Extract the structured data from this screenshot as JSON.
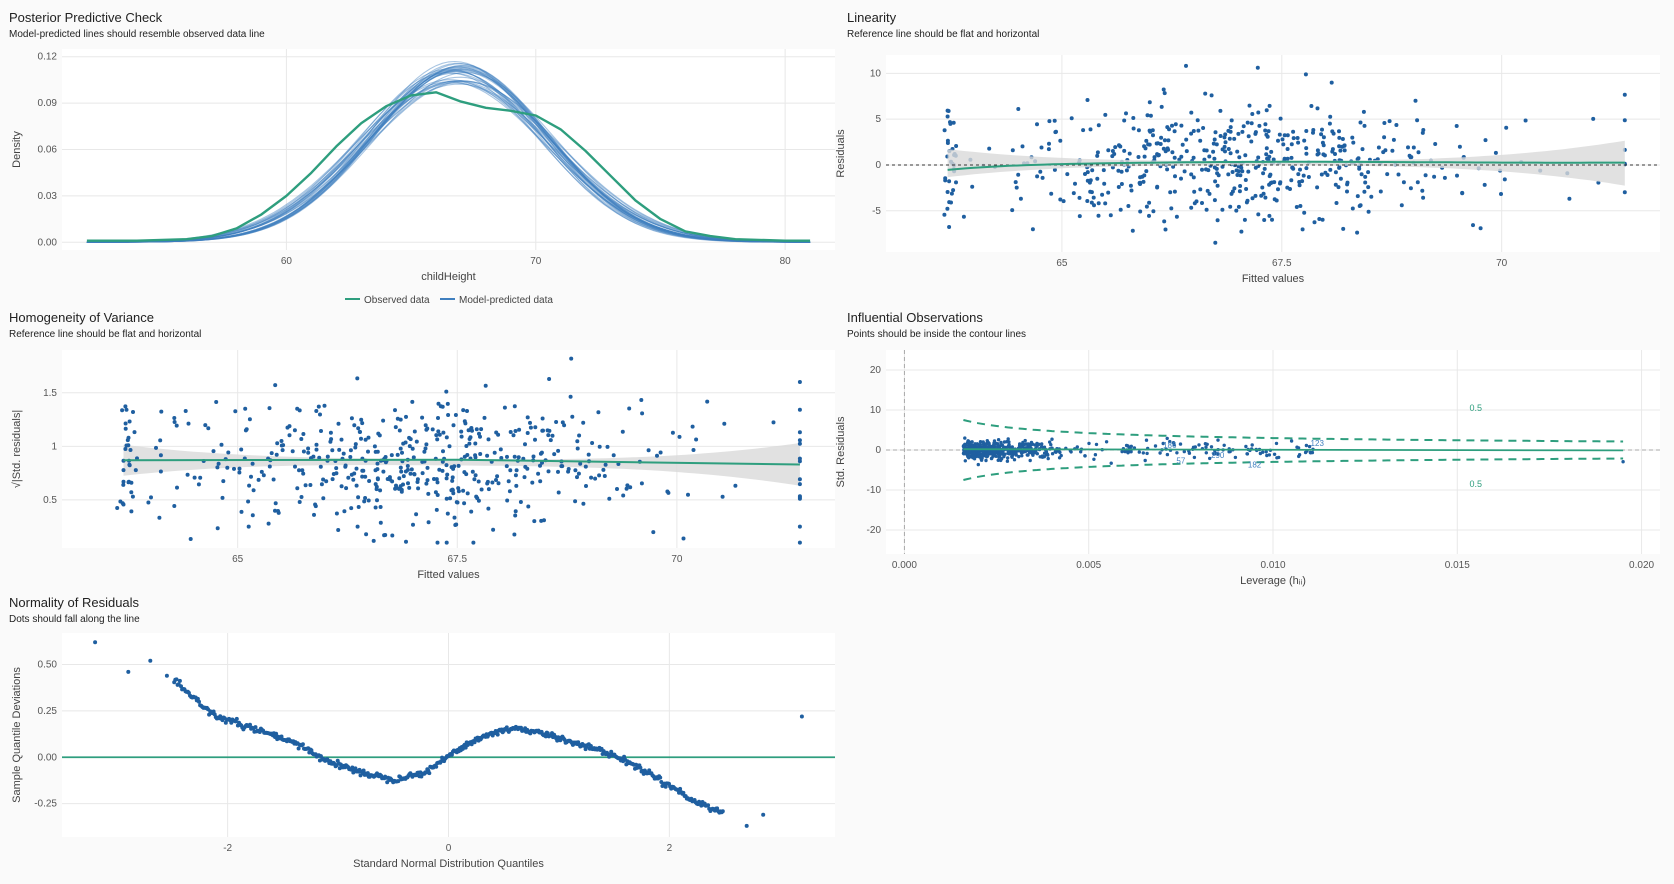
{
  "panels": {
    "ppc": {
      "title": "Posterior Predictive Check",
      "subtitle": "Model-predicted lines should resemble observed data line",
      "xlabel": "childHeight",
      "ylabel": "Density",
      "legend": [
        "Observed data",
        "Model-predicted data"
      ]
    },
    "linearity": {
      "title": "Linearity",
      "subtitle": "Reference line should be flat and horizontal",
      "xlabel": "Fitted values",
      "ylabel": "Residuals"
    },
    "homog": {
      "title": "Homogeneity of Variance",
      "subtitle": "Reference line should be flat and horizontal",
      "xlabel": "Fitted values",
      "ylabel": "√|Std. residuals|"
    },
    "influence": {
      "title": "Influential Observations",
      "subtitle": "Points should be inside the contour lines",
      "xlabel": "Leverage (hᵢᵢ)",
      "ylabel": "Std. Residuals",
      "contour_label": "0.5"
    },
    "normality": {
      "title": "Normality of Residuals",
      "subtitle": "Dots should fall along the line",
      "xlabel": "Standard Normal Distribution Quantiles",
      "ylabel": "Sample Quantile Deviations"
    }
  },
  "colors": {
    "observed": "#2e9e7e",
    "predicted": "#3f7fbf",
    "points": "#1f5fa0",
    "smooth": "#2e9e7e",
    "band": "#d9d9d9",
    "grid": "#e8e8e8"
  },
  "chart_data": [
    {
      "type": "line",
      "title": "Posterior Predictive Check",
      "xlabel": "childHeight",
      "ylabel": "Density",
      "xlim": [
        51,
        82
      ],
      "ylim": [
        -0.005,
        0.125
      ],
      "xticks": [
        60,
        70,
        80
      ],
      "yticks": [
        0.0,
        0.03,
        0.06,
        0.09,
        0.12
      ],
      "ytick_labels": [
        "0.00",
        "0.03",
        "0.06",
        "0.09",
        "0.12"
      ],
      "series": [
        {
          "name": "Observed data",
          "x": [
            52,
            54,
            56,
            57,
            58,
            59,
            60,
            61,
            62,
            63,
            64,
            65,
            66,
            67,
            68,
            69,
            70,
            71,
            72,
            73,
            74,
            75,
            76,
            77,
            78,
            80,
            81
          ],
          "y": [
            0.001,
            0.001,
            0.002,
            0.004,
            0.009,
            0.018,
            0.03,
            0.045,
            0.062,
            0.077,
            0.088,
            0.095,
            0.097,
            0.091,
            0.087,
            0.085,
            0.082,
            0.073,
            0.059,
            0.043,
            0.027,
            0.015,
            0.007,
            0.004,
            0.002,
            0.001,
            0.001
          ]
        }
      ],
      "predicted_draws": {
        "name": "Model-predicted data",
        "mean": 66.8,
        "sd_range": [
          3.4,
          3.9
        ],
        "peak_density_range": [
          0.098,
          0.114
        ],
        "count": 30
      },
      "legend_position": "bottom"
    },
    {
      "type": "scatter",
      "title": "Linearity",
      "xlabel": "Fitted values",
      "ylabel": "Residuals",
      "xlim": [
        63.0,
        71.8
      ],
      "ylim": [
        -9.5,
        12
      ],
      "xticks": [
        65.0,
        67.5,
        70.0
      ],
      "yticks": [
        -5,
        0,
        5,
        10
      ],
      "reference_line": 0,
      "x_range": [
        63.7,
        71.4
      ],
      "y_range": [
        -8.5,
        11.5
      ],
      "n_points": 560
    },
    {
      "type": "scatter",
      "title": "Homogeneity of Variance",
      "xlabel": "Fitted values",
      "ylabel": "√|Std. residuals|",
      "xlim": [
        63.0,
        71.8
      ],
      "ylim": [
        0.05,
        1.9
      ],
      "xticks": [
        65.0,
        67.5,
        70.0
      ],
      "yticks": [
        0.5,
        1.0,
        1.5
      ],
      "x_range": [
        63.7,
        71.4
      ],
      "y_range": [
        0.1,
        1.85
      ],
      "smooth": [
        [
          63.7,
          0.87
        ],
        [
          67.5,
          0.875
        ],
        [
          71.4,
          0.83
        ]
      ],
      "n_points": 560
    },
    {
      "type": "scatter",
      "title": "Influential Observations",
      "xlabel": "Leverage (hᵢᵢ)",
      "ylabel": "Std. Residuals",
      "xlim": [
        -0.0005,
        0.0205
      ],
      "ylim": [
        -26,
        25
      ],
      "xticks": [
        0.0,
        0.005,
        0.01,
        0.015,
        0.02
      ],
      "xtick_labels": [
        "0.000",
        "0.005",
        "0.010",
        "0.015",
        "0.020"
      ],
      "yticks": [
        -20,
        -10,
        0,
        10,
        20
      ],
      "labeled_points": [
        {
          "label": "186",
          "x": 0.0072,
          "y": 1.2
        },
        {
          "label": "57",
          "x": 0.0075,
          "y": -2.6
        },
        {
          "label": "290",
          "x": 0.0085,
          "y": -1.2
        },
        {
          "label": "182",
          "x": 0.0095,
          "y": -3.6
        },
        {
          "label": "123",
          "x": 0.0112,
          "y": 1.8
        }
      ],
      "contour_label": "0.5",
      "n_points": 560
    },
    {
      "type": "scatter",
      "title": "Normality of Residuals",
      "xlabel": "Standard Normal Distribution Quantiles",
      "ylabel": "Sample Quantile Deviations",
      "xlim": [
        -3.5,
        3.5
      ],
      "ylim": [
        -0.43,
        0.67
      ],
      "xticks": [
        -2,
        0,
        2
      ],
      "yticks": [
        -0.25,
        0.0,
        0.25,
        0.5
      ],
      "ytick_labels": [
        "-0.25",
        "0.00",
        "0.25",
        "0.50"
      ],
      "reference_line": 0,
      "curve": [
        [
          -3.2,
          0.62
        ],
        [
          -2.9,
          0.46
        ],
        [
          -2.7,
          0.52
        ],
        [
          -2.55,
          0.44
        ],
        [
          -2.35,
          0.34
        ],
        [
          -2.1,
          0.22
        ],
        [
          -1.8,
          0.16
        ],
        [
          -1.5,
          0.1
        ],
        [
          -1.3,
          0.05
        ],
        [
          -1.1,
          -0.02
        ],
        [
          -0.8,
          -0.08
        ],
        [
          -0.5,
          -0.12
        ],
        [
          -0.2,
          -0.08
        ],
        [
          0.1,
          0.05
        ],
        [
          0.35,
          0.12
        ],
        [
          0.6,
          0.16
        ],
        [
          0.9,
          0.12
        ],
        [
          1.2,
          0.07
        ],
        [
          1.5,
          0.01
        ],
        [
          1.8,
          -0.08
        ],
        [
          2.0,
          -0.15
        ],
        [
          2.2,
          -0.23
        ],
        [
          2.5,
          -0.3
        ],
        [
          2.7,
          -0.37
        ],
        [
          2.85,
          -0.31
        ],
        [
          3.2,
          0.22
        ]
      ]
    }
  ]
}
